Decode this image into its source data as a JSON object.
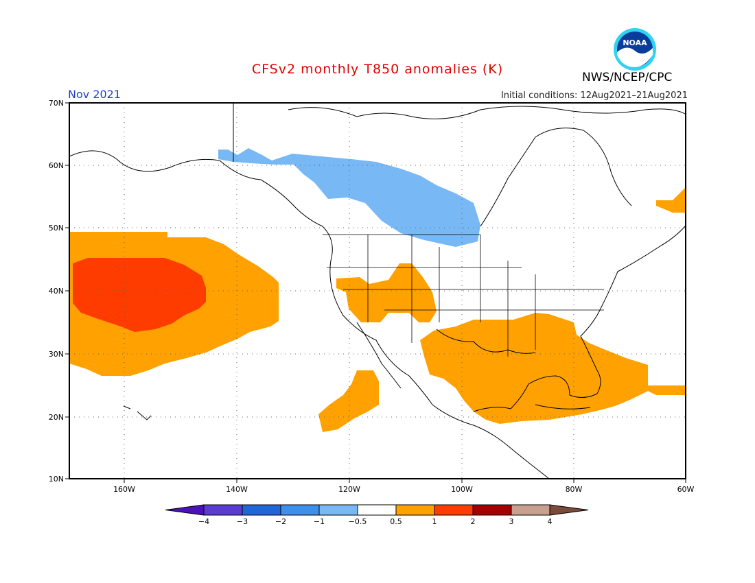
{
  "title": "CFSv2 monthly T850 anomalies (K)",
  "valid_month": "Nov 2021",
  "initial_conditions": "Initial conditions: 12Aug2021–21Aug2021",
  "agency": "NWS/NCEP/CPC",
  "logo": {
    "text": "NOAA",
    "icon": "noaa-logo-icon"
  },
  "colors": {
    "title": "#e00000",
    "month": "#1a3fd0",
    "warm_0_5_1": "#ffa100",
    "warm_1_2": "#ff3c00",
    "cool_m1_m0_5": "#78b8f5",
    "coast": "#000000"
  },
  "map": {
    "lat_labels": [
      "70N",
      "60N",
      "50N",
      "40N",
      "30N",
      "20N",
      "10N"
    ],
    "lon_labels": [
      "160W",
      "140W",
      "120W",
      "100W",
      "80W",
      "60W"
    ]
  },
  "colorbar": {
    "labels": [
      "−4",
      "−3",
      "−2",
      "−1",
      "−0.5",
      "0.5",
      "1",
      "2",
      "3",
      "4"
    ],
    "colors": [
      "#4a12b8",
      "#5a3cd2",
      "#1f66d8",
      "#3d8fec",
      "#78b8f5",
      "#ffffff",
      "#ffa100",
      "#ff3c00",
      "#a40000",
      "#c8a090",
      "#7a4a3a"
    ]
  }
}
